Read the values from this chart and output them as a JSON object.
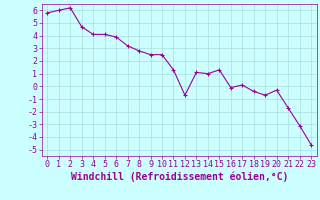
{
  "x": [
    0,
    1,
    2,
    3,
    4,
    5,
    6,
    7,
    8,
    9,
    10,
    11,
    12,
    13,
    14,
    15,
    16,
    17,
    18,
    19,
    20,
    21,
    22,
    23
  ],
  "y": [
    5.8,
    6.0,
    6.2,
    4.7,
    4.1,
    4.1,
    3.9,
    3.2,
    2.8,
    2.5,
    2.5,
    1.3,
    -0.7,
    1.1,
    1.0,
    1.3,
    -0.1,
    0.1,
    -0.4,
    -0.7,
    -0.3,
    -1.7,
    -3.1,
    -4.6
  ],
  "line_color": "#990099",
  "marker": "+",
  "marker_color": "#990099",
  "bg_color": "#ccffff",
  "grid_color": "#aadddd",
  "xlabel": "Windchill (Refroidissement éolien,°C)",
  "xlabel_color": "#990099",
  "tick_color": "#990099",
  "ylim": [
    -5.5,
    6.5
  ],
  "xlim": [
    -0.5,
    23.5
  ],
  "yticks": [
    -5,
    -4,
    -3,
    -2,
    -1,
    0,
    1,
    2,
    3,
    4,
    5,
    6
  ],
  "xticks": [
    0,
    1,
    2,
    3,
    4,
    5,
    6,
    7,
    8,
    9,
    10,
    11,
    12,
    13,
    14,
    15,
    16,
    17,
    18,
    19,
    20,
    21,
    22,
    23
  ],
  "tick_fontsize": 6,
  "xlabel_fontsize": 7
}
